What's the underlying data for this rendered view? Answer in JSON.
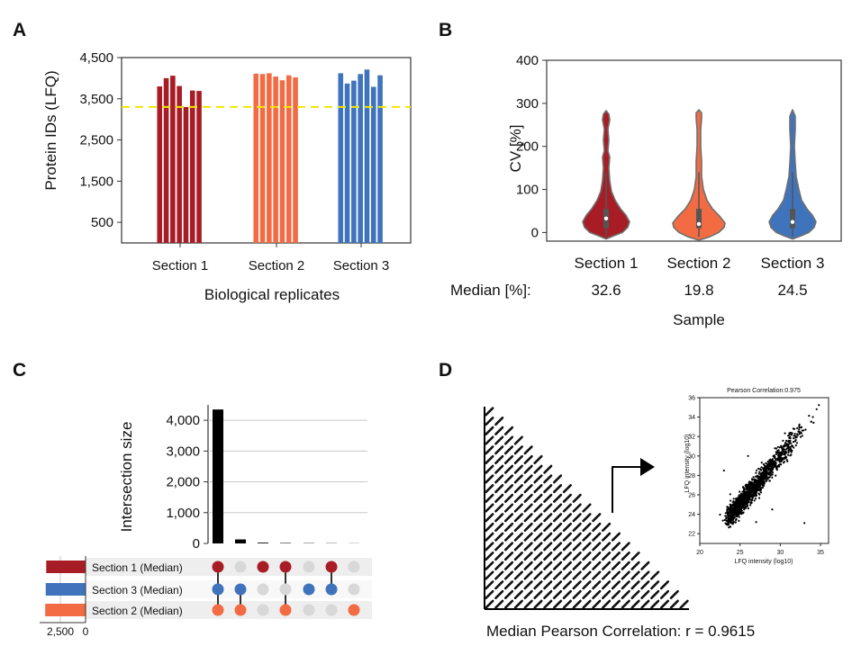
{
  "panels": {
    "a": "A",
    "b": "B",
    "c": "C",
    "d": "D"
  },
  "colors": {
    "section1": "#a81d25",
    "section2": "#f26b43",
    "section3": "#3f74bd",
    "threshold": "#f2e600",
    "grey_dot": "#d8d8d8",
    "violin_outline": "#6f6f6f"
  },
  "chart_data": [
    {
      "id": "A",
      "type": "bar",
      "xlabel": "Biological replicates",
      "ylabel": "Protein IDs (LFQ)",
      "ylim": [
        0,
        4500
      ],
      "yticks": [
        500,
        1500,
        2500,
        3500,
        4500
      ],
      "ytick_labels": [
        "500",
        "1,500",
        "2,500",
        "3,500",
        "4,500"
      ],
      "threshold": 3300,
      "groups": [
        {
          "name": "Section 1",
          "values": [
            3800,
            4000,
            4060,
            3810,
            3300,
            3700,
            3690
          ]
        },
        {
          "name": "Section 2",
          "values": [
            4110,
            4100,
            4120,
            4040,
            3950,
            4070,
            4020
          ]
        },
        {
          "name": "Section 3",
          "values": [
            4120,
            3870,
            3940,
            4100,
            4210,
            3790,
            4070
          ]
        }
      ]
    },
    {
      "id": "B",
      "type": "violin",
      "xlabel": "Sample",
      "ylabel": "CV [%]",
      "ylim": [
        -20,
        400
      ],
      "yticks": [
        0,
        100,
        200,
        300,
        400
      ],
      "median_label": "Median [%]:",
      "groups": [
        {
          "name": "Section 1",
          "median": 32.6,
          "median_text": "32.6"
        },
        {
          "name": "Section 2",
          "median": 19.8,
          "median_text": "19.8"
        },
        {
          "name": "Section 3",
          "median": 24.5,
          "median_text": "24.5"
        }
      ]
    },
    {
      "id": "C",
      "type": "bar",
      "ylabel": "Intersection size",
      "ylim": [
        0,
        4500
      ],
      "yticks": [
        0,
        1000,
        2000,
        3000,
        4000
      ],
      "ytick_labels": [
        "0",
        "1,000",
        "2,000",
        "3,000",
        "4,000"
      ],
      "intersection_values": [
        4350,
        130,
        25,
        15,
        10,
        8,
        5
      ],
      "sets": [
        "Section 1 (Median)",
        "Section 3 (Median)",
        "Section 2 (Median)"
      ],
      "set_sizes": [
        3900,
        3950,
        4000
      ],
      "set_axis_ticks": [
        "2,500",
        "0"
      ],
      "membership": [
        [
          true,
          true,
          true
        ],
        [
          false,
          true,
          true
        ],
        [
          true,
          false,
          false
        ],
        [
          true,
          false,
          true
        ],
        [
          false,
          true,
          false
        ],
        [
          true,
          true,
          false
        ],
        [
          false,
          false,
          true
        ]
      ]
    },
    {
      "id": "D",
      "type": "scatter",
      "title": "Pearson Correlation:0.975",
      "xlabel": "LFQ intensity (log10)",
      "ylabel": "LFQ intensity (log10)",
      "xlim": [
        20,
        36
      ],
      "ylim": [
        21,
        36
      ],
      "xticks": [
        20,
        25,
        30,
        35
      ],
      "yticks": [
        22,
        24,
        26,
        28,
        30,
        32,
        34,
        36
      ],
      "correlation": 0.975,
      "matrix_size": 21,
      "summary": "Median Pearson Correlation: r = 0.9615"
    }
  ]
}
